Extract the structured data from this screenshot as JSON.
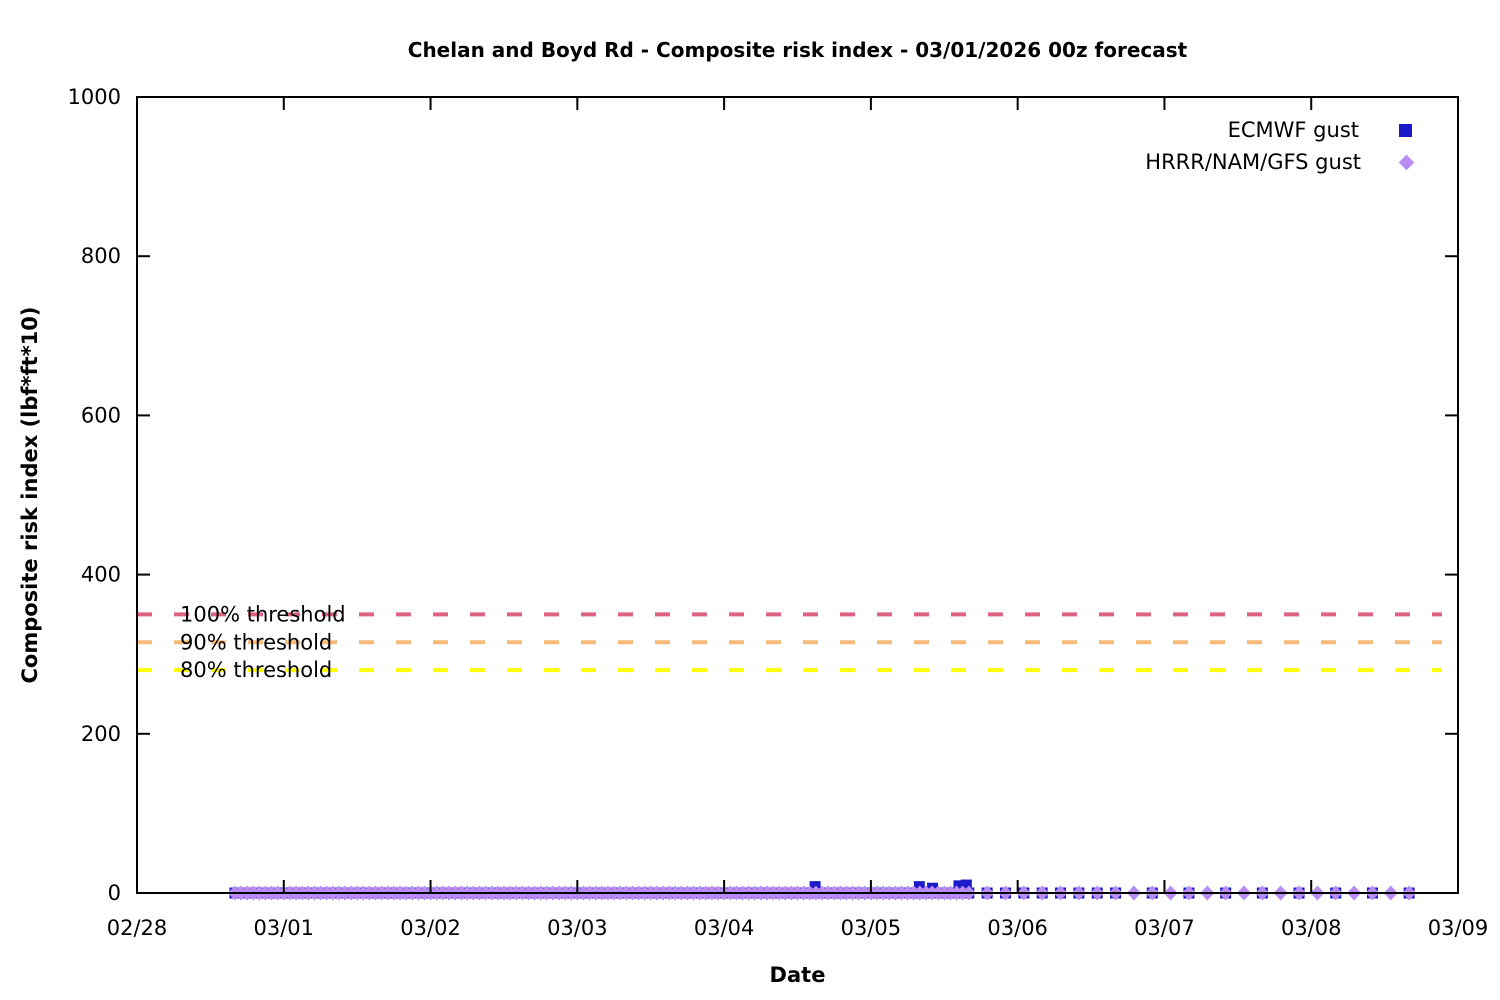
{
  "chart_data": {
    "type": "scatter",
    "title": "Chelan and Boyd Rd - Composite risk index - 03/01/2026 00z forecast",
    "xlabel": "Date",
    "ylabel": "Composite risk index (lbf*ft*10)",
    "ylim": [
      0,
      1000
    ],
    "yticks": [
      0,
      200,
      400,
      600,
      800,
      1000
    ],
    "xticks": [
      "02/28",
      "03/01",
      "03/02",
      "03/03",
      "03/04",
      "03/05",
      "03/06",
      "03/07",
      "03/08",
      "03/09"
    ],
    "x_days_span": 9,
    "grid": false,
    "legend_position": "top-right",
    "thresholds": [
      {
        "label": "100% threshold",
        "value": 350,
        "color": "#df6282"
      },
      {
        "label": "90% threshold",
        "value": 315,
        "color": "#f6bb79"
      },
      {
        "label": "80% threshold",
        "value": 280,
        "color": "#ffff00"
      }
    ],
    "series": [
      {
        "name": "ECMWF gust",
        "marker": "square",
        "color": "#1a1ac8",
        "segments": [
          {
            "start_day": 0.667,
            "end_day": 5.667,
            "step_hours": 2,
            "value": 0
          },
          {
            "start_day": 5.792,
            "end_day": 6.667,
            "step_hours": 3,
            "value": 0
          },
          {
            "start_day": 6.917,
            "end_day": 8.667,
            "step_hours": 6,
            "value": 0
          }
        ],
        "elevated_points": [
          {
            "day": 4.62,
            "value": 8
          },
          {
            "day": 5.33,
            "value": 8
          },
          {
            "day": 5.42,
            "value": 6
          },
          {
            "day": 5.6,
            "value": 9
          },
          {
            "day": 5.65,
            "value": 10
          }
        ]
      },
      {
        "name": "HRRR/NAM/GFS gust",
        "marker": "diamond",
        "color": "#b98cf4",
        "segments": [
          {
            "start_day": 0.667,
            "end_day": 5.667,
            "step_hours": 1,
            "value": 0
          },
          {
            "start_day": 5.792,
            "end_day": 8.667,
            "step_hours": 3,
            "value": 0
          }
        ],
        "elevated_points": []
      }
    ]
  }
}
